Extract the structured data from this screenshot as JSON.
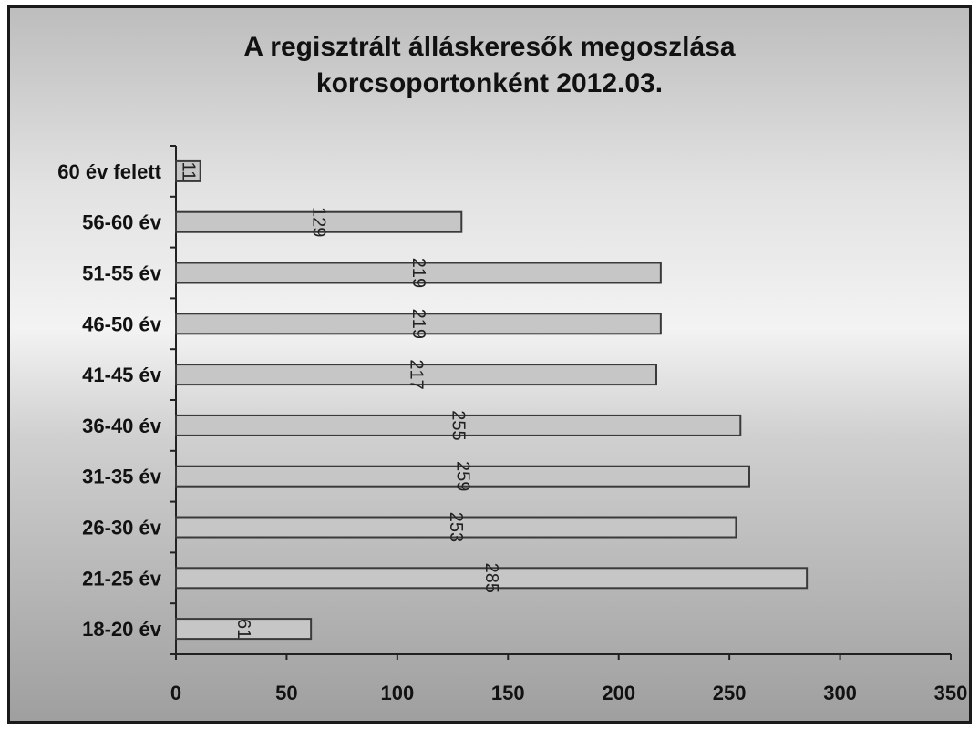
{
  "chart_data": {
    "type": "bar",
    "orientation": "horizontal",
    "title": "A regisztrált álláskeresők megoszlása korcsoportonként 2012.03.",
    "title_lines": [
      "A regisztrált álláskeresők megoszlása",
      "korcsoportonként 2012.03."
    ],
    "categories": [
      "60 év felett",
      "56-60 év",
      "51-55 év",
      "46-50 év",
      "41-45 év",
      "36-40 év",
      "31-35 év",
      "26-30 év",
      "21-25 év",
      "18-20 év"
    ],
    "values": [
      11,
      129,
      219,
      219,
      217,
      255,
      259,
      253,
      285,
      61
    ],
    "xlim": [
      0,
      350
    ],
    "xticks": [
      0,
      50,
      100,
      150,
      200,
      250,
      300,
      350
    ],
    "xlabel": "",
    "ylabel": "",
    "grid": false,
    "legend": "none",
    "colors": {
      "bar": "#c6c6c6",
      "bar_border": "#3a3a3a"
    }
  }
}
